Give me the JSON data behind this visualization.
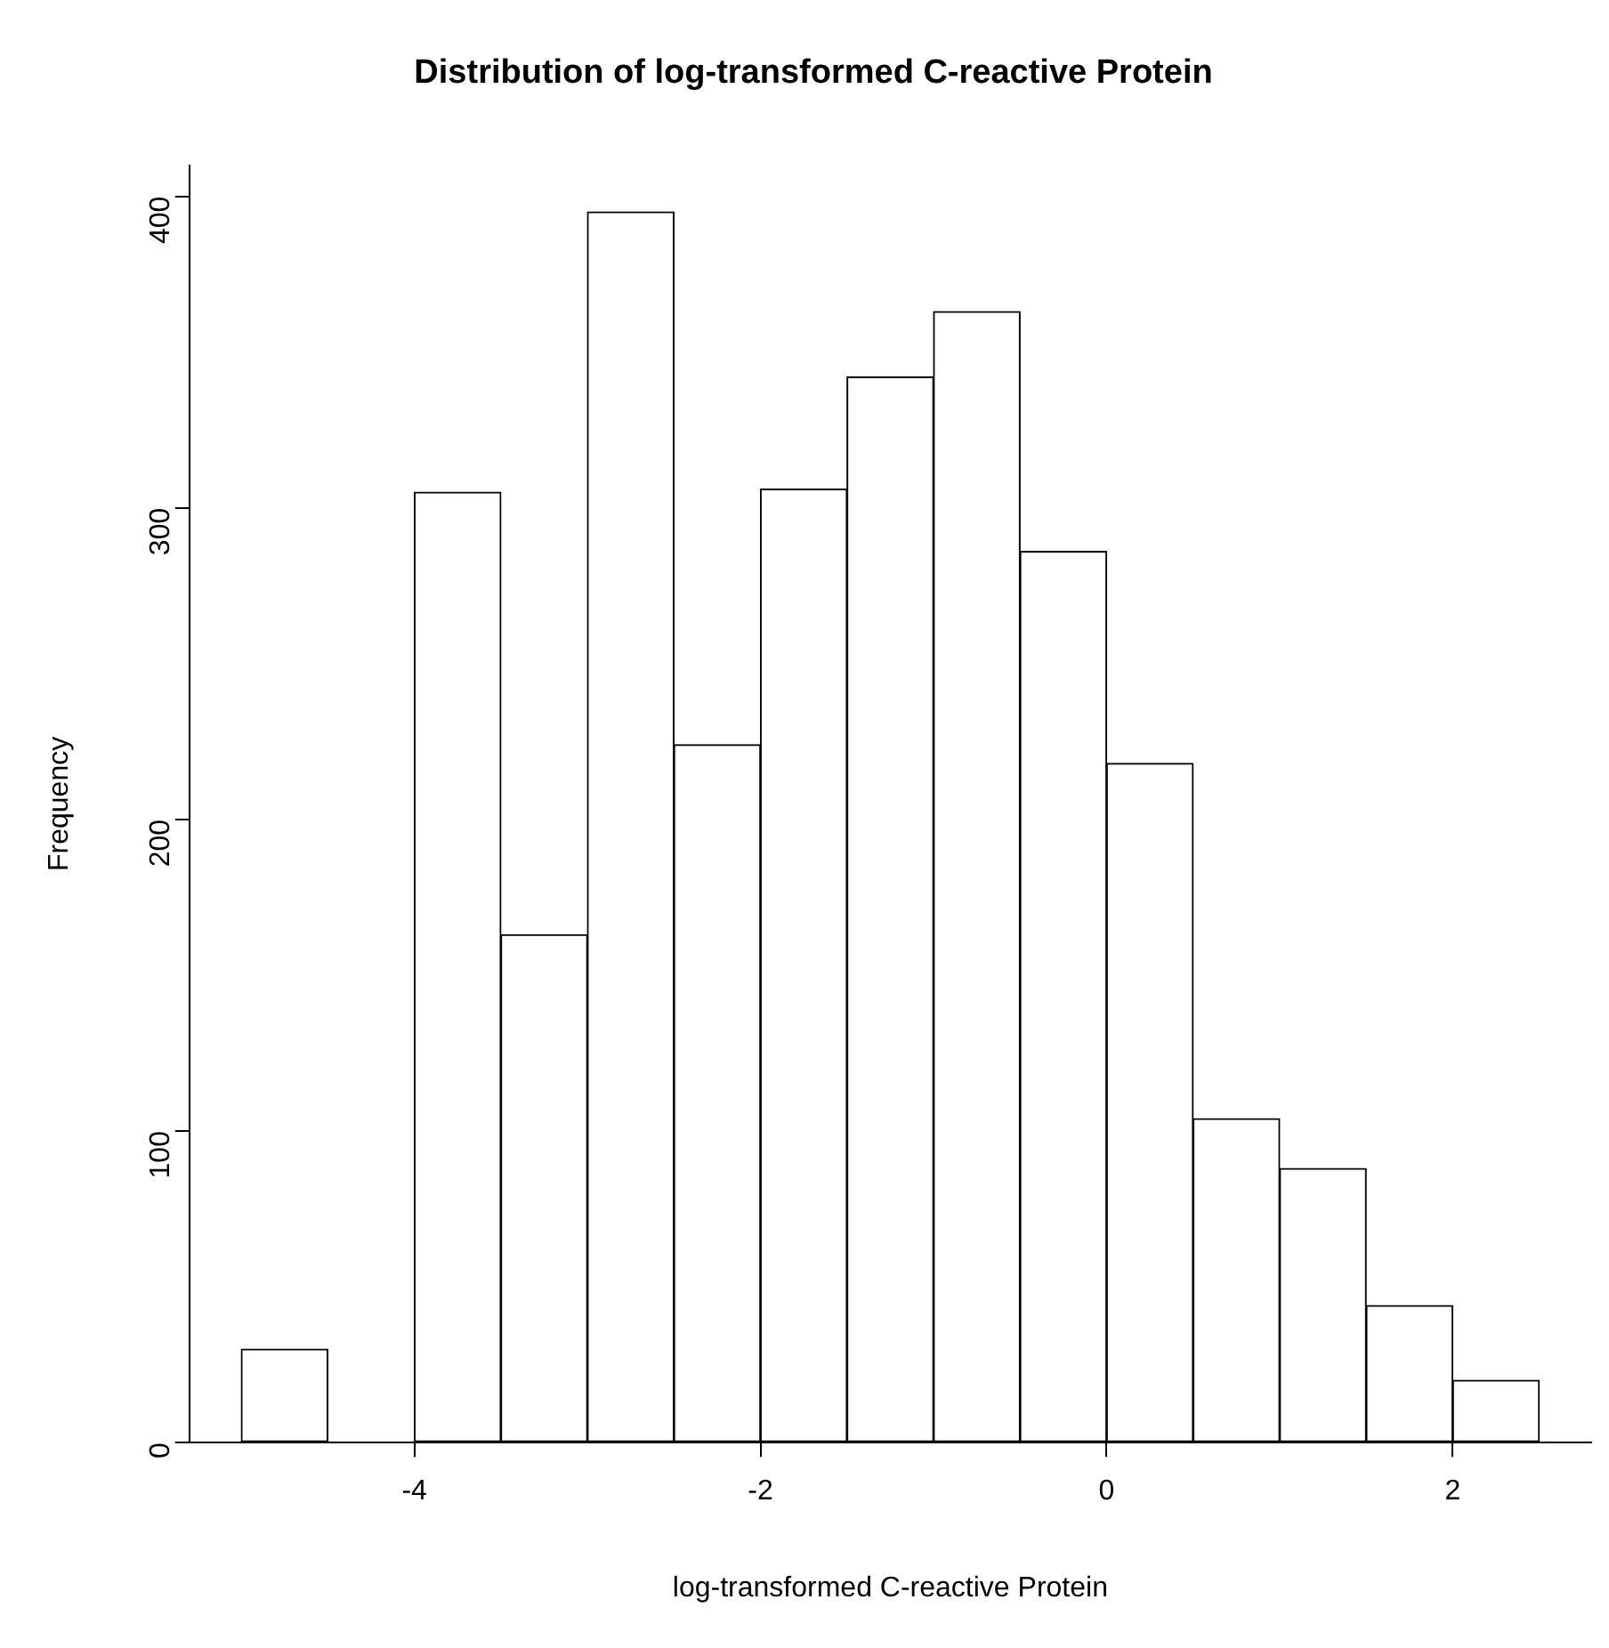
{
  "chart_data": {
    "type": "histogram",
    "title": "Distribution of log-transformed C-reactive Protein",
    "xlabel": "log-transformed C-reactive Protein",
    "ylabel": "Frequency",
    "bins": [
      -5,
      -4.5,
      -4,
      -3.5,
      -3,
      -2.5,
      -2,
      -1.5,
      -1,
      -0.5,
      0,
      0.5,
      1,
      1.5,
      2,
      2.5
    ],
    "values": [
      30,
      0,
      305,
      163,
      395,
      224,
      306,
      342,
      363,
      286,
      218,
      104,
      88,
      44,
      20
    ],
    "color": "#ffffff",
    "xlim": [
      -5.3,
      2.8
    ],
    "xticks": [
      -4,
      -2,
      0,
      2
    ],
    "ylim": [
      0,
      410
    ],
    "yticks": [
      0,
      100,
      200,
      300,
      400
    ],
    "grid": false,
    "legend": false
  }
}
